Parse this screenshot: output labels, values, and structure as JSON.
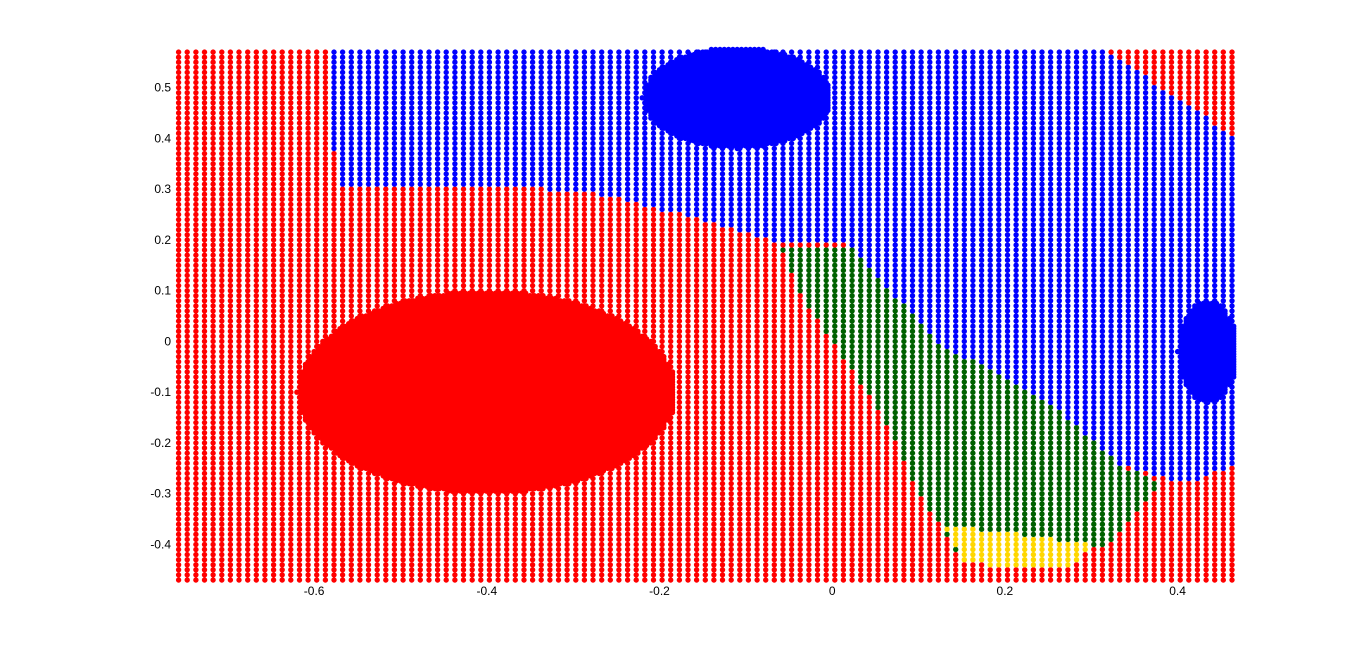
{
  "chart_data": {
    "type": "scatter",
    "title": "",
    "xlabel": "",
    "ylabel": "",
    "xlim": [
      -0.76,
      0.47
    ],
    "ylim": [
      -0.47,
      0.58
    ],
    "grid": false,
    "legend": "none",
    "xticks": [
      -0.6,
      -0.4,
      -0.2,
      0,
      0.2,
      0.4
    ],
    "xtick_labels": [
      "-0.6",
      "-0.4",
      "-0.2",
      "0",
      "0.2",
      "0.4"
    ],
    "yticks": [
      0.5,
      0.4,
      0.3,
      0.2,
      0.1,
      0,
      -0.1,
      -0.2,
      -0.3,
      -0.4
    ],
    "ytick_labels": [
      "0.5",
      "0.4",
      "0.3",
      "0.2",
      "0.1",
      "0",
      "-0.1",
      "-0.2",
      "-0.3",
      "-0.4"
    ],
    "point_grid": {
      "x_start": -0.757,
      "x_end": 0.47,
      "x_step": 0.01,
      "y_start": -0.47,
      "y_end": 0.578,
      "y_step": 0.01
    },
    "class_colors": {
      "red": "#ff0000",
      "blue": "#0000ff",
      "green": "#006000",
      "yellow": "#ffd700"
    },
    "class_regions": [
      {
        "class": "blue",
        "description_polygon_data_units": [
          [
            -0.585,
            0.578
          ],
          [
            0.315,
            0.578
          ],
          [
            0.38,
            0.5
          ],
          [
            0.47,
            0.4
          ],
          [
            0.47,
            -0.24
          ],
          [
            0.41,
            -0.28
          ],
          [
            0.33,
            -0.24
          ],
          [
            0.25,
            -0.12
          ],
          [
            0.12,
            0.0
          ],
          [
            0.02,
            0.19
          ],
          [
            -0.07,
            0.2
          ],
          [
            -0.15,
            0.24
          ],
          [
            -0.27,
            0.29
          ],
          [
            -0.4,
            0.31
          ],
          [
            -0.57,
            0.31
          ],
          [
            -0.58,
            0.4
          ]
        ]
      },
      {
        "class": "green",
        "description_polygon_data_units": [
          [
            -0.06,
            0.19
          ],
          [
            0.02,
            0.19
          ],
          [
            0.12,
            0.0
          ],
          [
            0.25,
            -0.12
          ],
          [
            0.33,
            -0.24
          ],
          [
            0.38,
            -0.28
          ],
          [
            0.32,
            -0.4
          ],
          [
            0.22,
            -0.44
          ],
          [
            0.15,
            -0.43
          ],
          [
            0.1,
            -0.3
          ],
          [
            0.06,
            -0.15
          ],
          [
            0.0,
            0.0
          ],
          [
            -0.04,
            0.1
          ]
        ]
      },
      {
        "class": "yellow",
        "description_polygon_data_units": [
          [
            0.13,
            -0.36
          ],
          [
            0.3,
            -0.4
          ],
          [
            0.28,
            -0.44
          ],
          [
            0.2,
            -0.45
          ],
          [
            0.15,
            -0.43
          ]
        ]
      }
    ],
    "dense_regions": [
      {
        "class": "red",
        "cx": -0.4,
        "cy": -0.1,
        "rx": 0.22,
        "ry": 0.2
      },
      {
        "class": "blue",
        "cx": -0.11,
        "cy": 0.48,
        "rx": 0.11,
        "ry": 0.1
      },
      {
        "class": "blue",
        "cx": 0.435,
        "cy": -0.02,
        "rx": 0.035,
        "ry": 0.1
      }
    ]
  }
}
